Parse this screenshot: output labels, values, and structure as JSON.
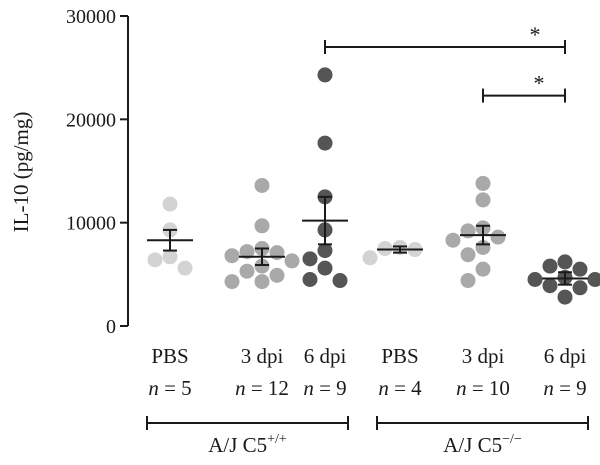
{
  "chart_data": {
    "type": "scatter",
    "ylabel": "IL-10 (pg/mg)",
    "ylim": [
      0,
      30000
    ],
    "yticks": [
      "0",
      "10000",
      "20000",
      "30000"
    ],
    "groups": [
      {
        "label": "PBS",
        "n_label": "n = 5",
        "color": "#d3d3d3",
        "points": [
          11800,
          9300,
          6700,
          5600,
          6400
        ],
        "mean": 8300,
        "sem_low": 7300,
        "sem_high": 9300
      },
      {
        "label": "3 dpi",
        "n_label": "n = 12",
        "color": "#a9a9a9",
        "points": [
          13600,
          9700,
          7200,
          7100,
          7500,
          6800,
          6300,
          5800,
          5300,
          4900,
          4300,
          4300
        ],
        "mean": 6700,
        "sem_low": 5900,
        "sem_high": 7500
      },
      {
        "label": "6 dpi",
        "n_label": "n = 9",
        "color": "#555555",
        "points": [
          24300,
          17700,
          12500,
          9300,
          7300,
          6500,
          5600,
          4500,
          4400
        ],
        "mean": 10200,
        "sem_low": 7900,
        "sem_high": 12500
      },
      {
        "label": "PBS",
        "n_label": "n = 4",
        "color": "#d3d3d3",
        "points": [
          7600,
          7500,
          7400,
          6600
        ],
        "mean": 7400,
        "sem_low": 7100,
        "sem_high": 7700
      },
      {
        "label": "3 dpi",
        "n_label": "n = 10",
        "color": "#a9a9a9",
        "points": [
          13800,
          12200,
          9500,
          9200,
          8600,
          8300,
          7600,
          6900,
          5500,
          4400
        ],
        "mean": 8800,
        "sem_low": 7900,
        "sem_high": 9700
      },
      {
        "label": "6 dpi",
        "n_label": "n = 9",
        "color": "#555555",
        "points": [
          6200,
          5800,
          5500,
          4700,
          4500,
          4500,
          3900,
          3700,
          2800
        ],
        "mean": 4600,
        "sem_low": 4000,
        "sem_high": 5200
      }
    ],
    "brackets": [
      {
        "label": "A/J C5+/+",
        "groups": [
          0,
          2
        ]
      },
      {
        "label": "A/J C5−/−",
        "groups": [
          3,
          5
        ]
      }
    ],
    "significance": [
      {
        "from": 2,
        "to": 5,
        "y": 27000,
        "label": "*"
      },
      {
        "from": 4,
        "to": 5,
        "y": 22300,
        "label": "*"
      }
    ]
  }
}
